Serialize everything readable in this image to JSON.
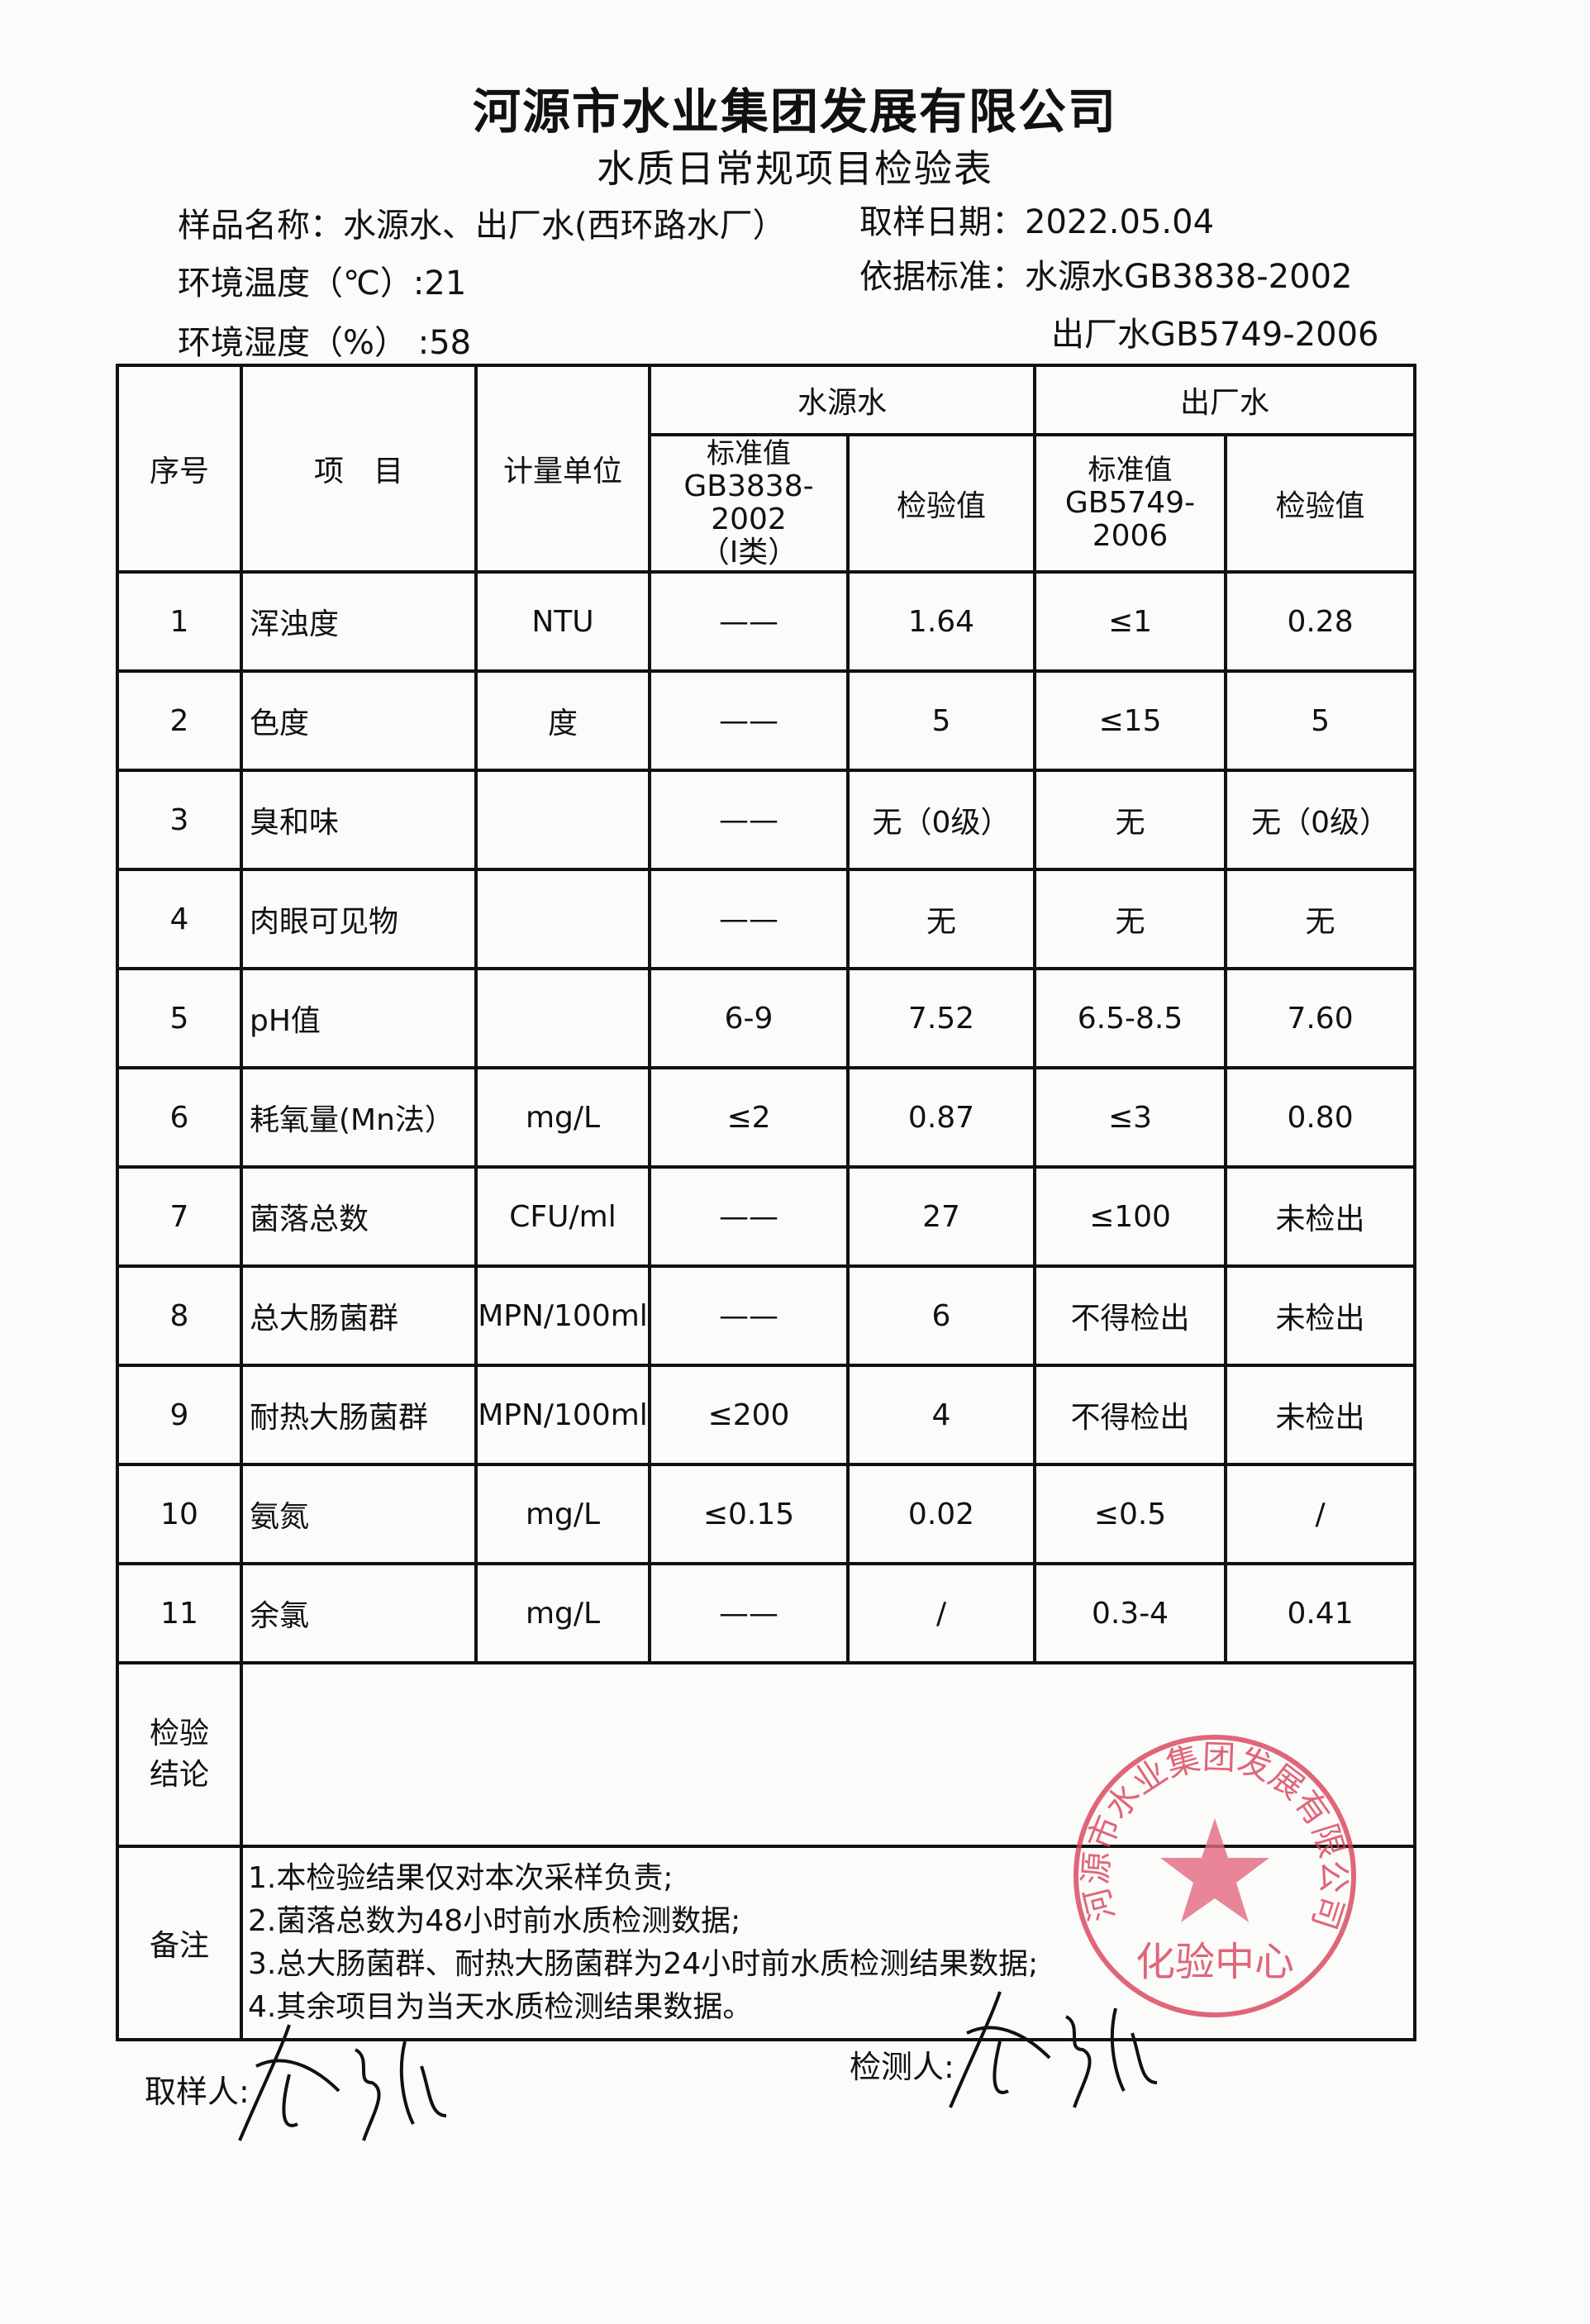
{
  "header": {
    "company": "河源市水业集团发展有限公司",
    "title": "水质日常规项目检验表",
    "sample_name_label": "样品名称：",
    "sample_name": "水源水、出厂水(西环路水厂）",
    "sample_date_label": "取样日期：",
    "sample_date": "2022.05.04",
    "temperature_label": "环境温度（℃）:",
    "temperature": "21",
    "humidity_label": "环境湿度（%）  :",
    "humidity": "58",
    "standard_label": "依据标准：",
    "standard_source": "水源水GB3838-2002",
    "standard_plant": "出厂水GB5749-2006"
  },
  "table": {
    "col_no": "序号",
    "col_item": "项　目",
    "col_unit": "计量单位",
    "group_source": "水源水",
    "group_plant": "出厂水",
    "source_std_label": "标准值",
    "source_std_code": "GB3838-2002",
    "source_std_class": "（Ⅰ类）",
    "source_value_label": "检验值",
    "plant_std_label": "标准值",
    "plant_std_code": "GB5749-2006",
    "plant_value_label": "检验值",
    "rows": [
      {
        "no": "1",
        "item": "浑浊度",
        "unit": "NTU",
        "src_std": "——",
        "src_val": "1.64",
        "plant_std": "≤1",
        "plant_val": "0.28"
      },
      {
        "no": "2",
        "item": "色度",
        "unit": "度",
        "src_std": "——",
        "src_val": "5",
        "plant_std": "≤15",
        "plant_val": "5"
      },
      {
        "no": "3",
        "item": "臭和味",
        "unit": "",
        "src_std": "——",
        "src_val": "无（0级）",
        "plant_std": "无",
        "plant_val": "无（0级）"
      },
      {
        "no": "4",
        "item": "肉眼可见物",
        "unit": "",
        "src_std": "——",
        "src_val": "无",
        "plant_std": "无",
        "plant_val": "无"
      },
      {
        "no": "5",
        "item": "pH值",
        "unit": "",
        "src_std": "6-9",
        "src_val": "7.52",
        "plant_std": "6.5-8.5",
        "plant_val": "7.60"
      },
      {
        "no": "6",
        "item": "耗氧量(Mn法）",
        "unit": "mg/L",
        "src_std": "≤2",
        "src_val": "0.87",
        "plant_std": "≤3",
        "plant_val": "0.80"
      },
      {
        "no": "7",
        "item": "菌落总数",
        "unit": "CFU/ml",
        "src_std": "——",
        "src_val": "27",
        "plant_std": "≤100",
        "plant_val": "未检出"
      },
      {
        "no": "8",
        "item": "总大肠菌群",
        "unit": "MPN/100ml",
        "src_std": "——",
        "src_val": "6",
        "plant_std": "不得检出",
        "plant_val": "未检出"
      },
      {
        "no": "9",
        "item": "耐热大肠菌群",
        "unit": "MPN/100ml",
        "src_std": "≤200",
        "src_val": "4",
        "plant_std": "不得检出",
        "plant_val": "未检出"
      },
      {
        "no": "10",
        "item": "氨氮",
        "unit": "mg/L",
        "src_std": "≤0.15",
        "src_val": "0.02",
        "plant_std": "≤0.5",
        "plant_val": "/"
      },
      {
        "no": "11",
        "item": "余氯",
        "unit": "mg/L",
        "src_std": "——",
        "src_val": "/",
        "plant_std": "0.3-4",
        "plant_val": "0.41"
      }
    ],
    "conclusion_label": "检验\n结论",
    "conclusion": "",
    "remarks_label": "备注",
    "remarks": [
      "1.本检验结果仅对本次采样负责;",
      "2.菌落总数为48小时前水质检测数据;",
      "3.总大肠菌群、耐热大肠菌群为24小时前水质检测结果数据;",
      "4.其余项目为当天水质检测结果数据。"
    ]
  },
  "footer": {
    "sampler_label": "取样人:",
    "tester_label": "检测人:"
  },
  "stamp": {
    "ring_text": "河源市水业集团发展有限公司",
    "center_text": "化验中心",
    "color": "#d9415a"
  }
}
